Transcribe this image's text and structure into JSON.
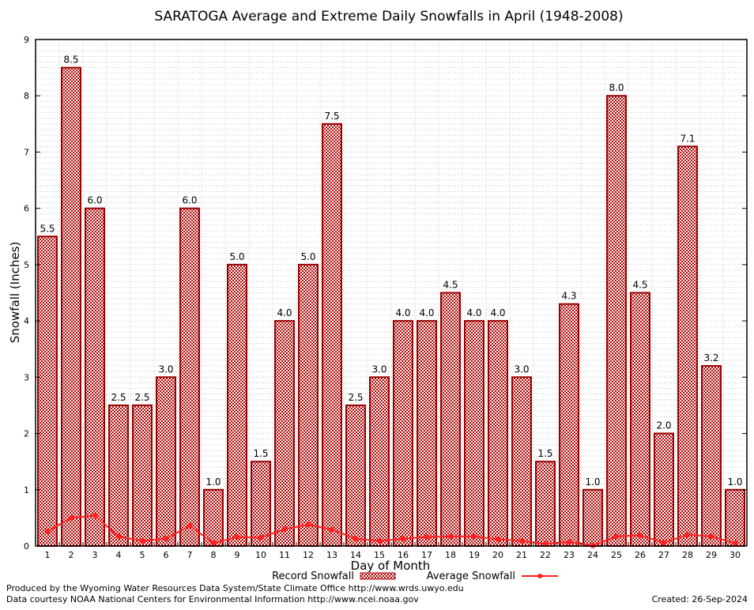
{
  "chart_data": {
    "type": "bar",
    "title": "SARATOGA Average and Extreme Daily Snowfalls in April (1948-2008)",
    "xlabel": "Day of Month",
    "ylabel": "Snowfall (Inches)",
    "ylim": [
      0,
      9
    ],
    "yticks": [
      0,
      1,
      2,
      3,
      4,
      5,
      6,
      7,
      8,
      9
    ],
    "grid": true,
    "legend_position": "bottom",
    "categories": [
      "1",
      "2",
      "3",
      "4",
      "5",
      "6",
      "7",
      "8",
      "9",
      "10",
      "11",
      "12",
      "13",
      "14",
      "15",
      "16",
      "17",
      "18",
      "19",
      "20",
      "21",
      "22",
      "23",
      "24",
      "25",
      "26",
      "27",
      "28",
      "29",
      "30"
    ],
    "series": [
      {
        "name": "Record Snowfall",
        "type": "bar",
        "color": "#cc0000",
        "values": [
          5.5,
          8.5,
          6.0,
          2.5,
          2.5,
          3.0,
          6.0,
          1.0,
          5.0,
          1.5,
          4.0,
          5.0,
          7.5,
          2.5,
          3.0,
          4.0,
          4.0,
          4.5,
          4.0,
          4.0,
          3.0,
          1.5,
          4.3,
          1.0,
          8.0,
          4.5,
          2.0,
          7.1,
          3.2,
          1.0
        ]
      },
      {
        "name": "Average Snowfall",
        "type": "line",
        "color": "#ff2020",
        "values": [
          0.26,
          0.5,
          0.54,
          0.17,
          0.09,
          0.13,
          0.36,
          0.05,
          0.16,
          0.15,
          0.3,
          0.38,
          0.29,
          0.13,
          0.09,
          0.13,
          0.16,
          0.17,
          0.17,
          0.12,
          0.09,
          0.04,
          0.07,
          0.01,
          0.17,
          0.19,
          0.06,
          0.2,
          0.17,
          0.05
        ]
      }
    ]
  },
  "footer": {
    "credit1": "Produced by the Wyoming Water Resources Data System/State Climate Office http://www.wrds.uwyo.edu",
    "credit2": "Data courtesy NOAA National Centers for Environmental Information http://www.ncei.noaa.gov",
    "created": "Created:  26-Sep-2024"
  }
}
